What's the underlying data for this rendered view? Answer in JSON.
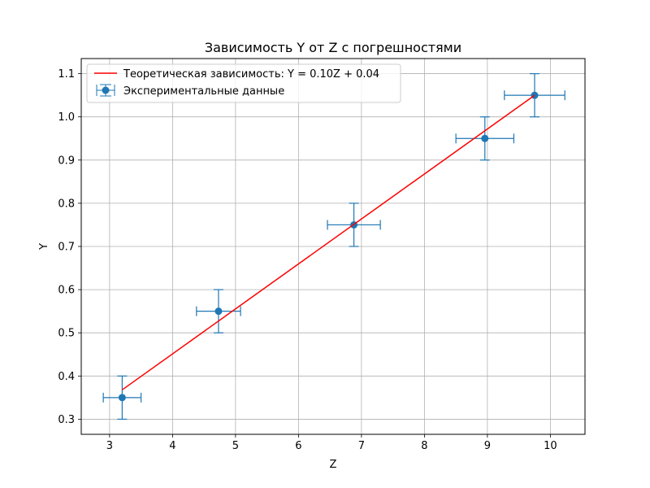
{
  "chart_data": {
    "type": "scatter",
    "title": "Зависимость Y от Z с погрешностями",
    "xlabel": "Z",
    "ylabel": "Y",
    "xlim": [
      2.55,
      10.55
    ],
    "ylim": [
      0.265,
      1.135
    ],
    "xticks": [
      3,
      4,
      5,
      6,
      7,
      8,
      9,
      10
    ],
    "xtick_labels": [
      "3",
      "4",
      "5",
      "6",
      "7",
      "8",
      "9",
      "10"
    ],
    "yticks": [
      0.3,
      0.4,
      0.5,
      0.6,
      0.7,
      0.8,
      0.9,
      1.0,
      1.1
    ],
    "ytick_labels": [
      "0.3",
      "0.4",
      "0.5",
      "0.6",
      "0.7",
      "0.8",
      "0.9",
      "1.0",
      "1.1"
    ],
    "grid": true,
    "legend_position": "top-left",
    "series": [
      {
        "name": "Теоретическая зависимость: Y = 0.10Z + 0.04",
        "kind": "line",
        "color": "#ff0000",
        "x": [
          3.2,
          9.75
        ],
        "y": [
          0.368,
          1.05
        ]
      },
      {
        "name": "Экспериментальные данные",
        "kind": "errorbar",
        "color": "#1f77b4",
        "x": [
          3.2,
          4.73,
          6.88,
          8.96,
          9.75
        ],
        "y": [
          0.35,
          0.55,
          0.75,
          0.95,
          1.05
        ],
        "xerr": [
          0.3,
          0.35,
          0.42,
          0.46,
          0.48
        ],
        "yerr": [
          0.05,
          0.05,
          0.05,
          0.05,
          0.05
        ]
      }
    ]
  }
}
